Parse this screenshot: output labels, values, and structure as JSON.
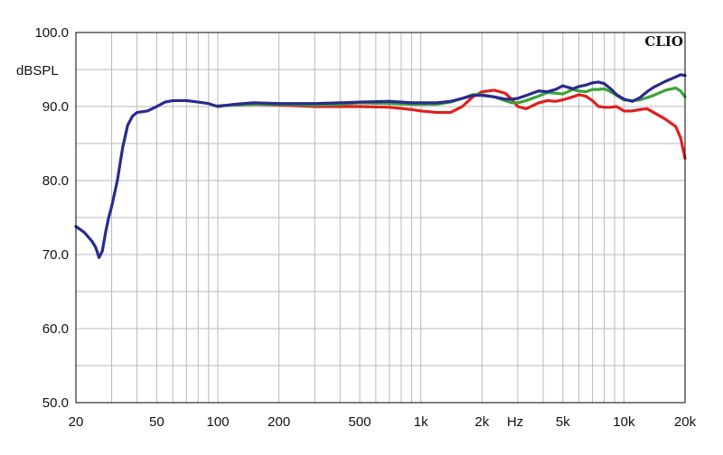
{
  "chart_data": {
    "type": "line",
    "title": "",
    "xlabel": "",
    "ylabel": "dBSPL",
    "x_unit_label": "Hz",
    "brand_label": "CLIO",
    "x_scale": "log",
    "xlim": [
      20,
      20000
    ],
    "ylim": [
      50,
      100
    ],
    "grid": true,
    "y_ticks": [
      {
        "value": 100,
        "label": "100.0"
      },
      {
        "value": 90,
        "label": "90.0"
      },
      {
        "value": 80,
        "label": "80.0"
      },
      {
        "value": 70,
        "label": "70.0"
      },
      {
        "value": 60,
        "label": "60.0"
      },
      {
        "value": 50,
        "label": "50.0"
      }
    ],
    "x_ticks": [
      {
        "value": 20,
        "label": "20"
      },
      {
        "value": 50,
        "label": "50"
      },
      {
        "value": 100,
        "label": "100"
      },
      {
        "value": 200,
        "label": "200"
      },
      {
        "value": 500,
        "label": "500"
      },
      {
        "value": 1000,
        "label": "1k"
      },
      {
        "value": 2000,
        "label": "2k"
      },
      {
        "value": 5000,
        "label": "5k"
      },
      {
        "value": 10000,
        "label": "10k"
      },
      {
        "value": 20000,
        "label": "20k"
      }
    ],
    "series": [
      {
        "color": "#e01f1f",
        "x": [
          100,
          120,
          150,
          200,
          300,
          400,
          500,
          700,
          900,
          1000,
          1200,
          1400,
          1600,
          1800,
          2000,
          2300,
          2600,
          2800,
          3000,
          3300,
          3800,
          4200,
          4600,
          5000,
          5600,
          6000,
          6500,
          7000,
          7500,
          8000,
          8600,
          9200,
          10000,
          11000,
          12000,
          13000,
          14000,
          16000,
          18000,
          19000,
          20000
        ],
        "y": [
          90.1,
          90.2,
          90.3,
          90.2,
          90.0,
          90.0,
          90.0,
          89.9,
          89.6,
          89.4,
          89.2,
          89.2,
          90.0,
          91.3,
          92.0,
          92.2,
          91.8,
          91.0,
          90.0,
          89.7,
          90.5,
          90.8,
          90.7,
          90.9,
          91.3,
          91.6,
          91.4,
          90.8,
          90.0,
          89.9,
          89.9,
          90.0,
          89.4,
          89.4,
          89.6,
          89.7,
          89.2,
          88.3,
          87.3,
          85.8,
          83.0
        ]
      },
      {
        "color": "#3aa335",
        "x": [
          100,
          120,
          150,
          200,
          300,
          400,
          500,
          700,
          900,
          1000,
          1200,
          1400,
          1600,
          1800,
          2000,
          2300,
          2600,
          2800,
          3000,
          3300,
          3800,
          4200,
          4600,
          5000,
          5600,
          6000,
          6500,
          7000,
          7500,
          8000,
          8600,
          9200,
          10000,
          11000,
          12000,
          13000,
          14000,
          16000,
          18000,
          19000,
          20000
        ],
        "y": [
          90.1,
          90.2,
          90.3,
          90.3,
          90.2,
          90.3,
          90.5,
          90.4,
          90.3,
          90.3,
          90.3,
          90.6,
          91.1,
          91.6,
          91.6,
          91.3,
          90.8,
          90.5,
          90.5,
          90.8,
          91.4,
          91.9,
          91.8,
          91.7,
          92.3,
          92.1,
          92.0,
          92.3,
          92.3,
          92.4,
          92.0,
          91.5,
          90.9,
          90.8,
          90.9,
          91.2,
          91.5,
          92.2,
          92.5,
          92.1,
          91.3
        ]
      },
      {
        "color": "#2a2a8f",
        "x": [
          20,
          22,
          24,
          25,
          26,
          27,
          28,
          29,
          30,
          32,
          34,
          36,
          38,
          40,
          45,
          50,
          55,
          60,
          65,
          70,
          80,
          90,
          100,
          120,
          150,
          200,
          300,
          400,
          500,
          700,
          900,
          1000,
          1200,
          1400,
          1600,
          1800,
          2000,
          2300,
          2600,
          2800,
          3000,
          3300,
          3800,
          4200,
          4600,
          5000,
          5600,
          6000,
          6500,
          7000,
          7500,
          8000,
          8600,
          9200,
          10000,
          11000,
          12000,
          13000,
          14000,
          16000,
          18000,
          19000,
          20000
        ],
        "y": [
          73.8,
          73.0,
          71.8,
          71.0,
          69.6,
          70.5,
          73.0,
          75.0,
          76.5,
          80.0,
          84.5,
          87.5,
          88.7,
          89.2,
          89.4,
          90.0,
          90.6,
          90.8,
          90.8,
          90.8,
          90.6,
          90.4,
          90.0,
          90.3,
          90.5,
          90.4,
          90.4,
          90.5,
          90.6,
          90.7,
          90.5,
          90.5,
          90.5,
          90.7,
          91.1,
          91.5,
          91.5,
          91.3,
          91.0,
          91.0,
          91.1,
          91.5,
          92.1,
          92.0,
          92.3,
          92.8,
          92.4,
          92.7,
          92.9,
          93.2,
          93.3,
          93.1,
          92.4,
          91.6,
          91.0,
          90.7,
          91.2,
          92.0,
          92.6,
          93.4,
          94.0,
          94.3,
          94.2
        ]
      }
    ]
  }
}
